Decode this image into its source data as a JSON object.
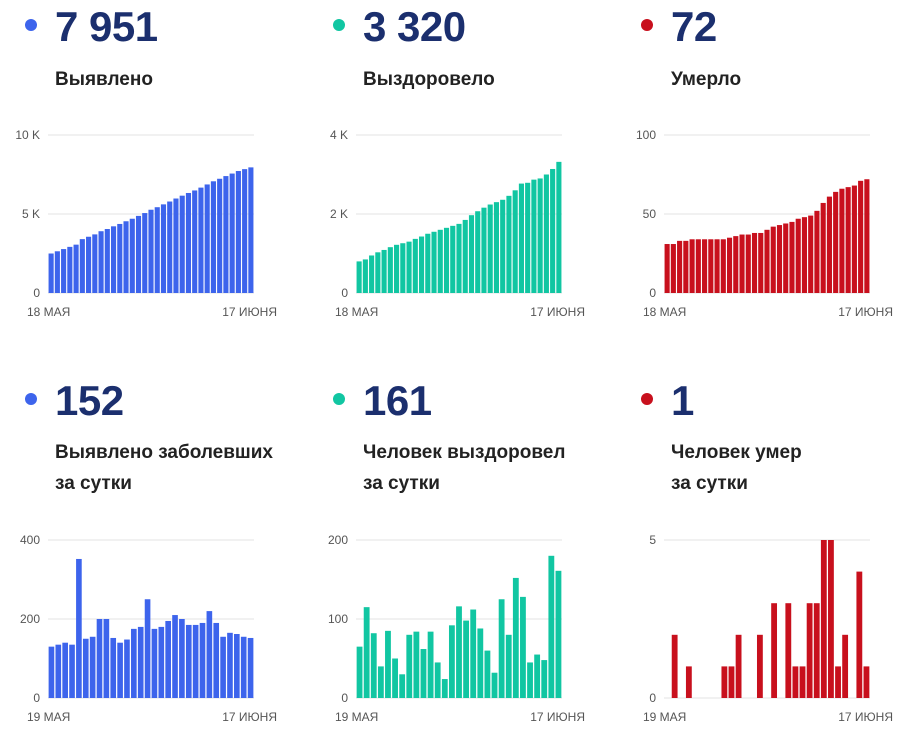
{
  "colors": {
    "blue": "#3d64ec",
    "teal": "#11c6a2",
    "red": "#c8101d",
    "value_text": "#1b2f6e"
  },
  "cards": [
    {
      "value": "7 951",
      "label1": "Выявлено",
      "label2": "",
      "color": "#3d64ec",
      "chart_data": {
        "type": "bar",
        "title": "",
        "xlabel": "",
        "ylabel": "",
        "ylim": [
          0,
          10000
        ],
        "yticks": [
          0,
          5000,
          10000
        ],
        "ytick_labels": [
          "0",
          "5 K",
          "10 K"
        ],
        "x_labels": [
          "18 МАЯ",
          "17 ИЮНЯ"
        ],
        "grid": true,
        "series": [
          {
            "values": [
              2500,
              2640,
              2780,
              2920,
              3060,
              3410,
              3560,
              3710,
              3910,
              4050,
              4220,
              4370,
              4540,
              4700,
              4880,
              5060,
              5270,
              5430,
              5610,
              5790,
              5980,
              6160,
              6330,
              6490,
              6670,
              6870,
              7070,
              7230,
              7400,
              7560,
              7720,
              7840,
              7951
            ]
          }
        ]
      }
    },
    {
      "value": "3 320",
      "label1": "Выздоровело",
      "label2": "",
      "color": "#11c6a2",
      "chart_data": {
        "type": "bar",
        "title": "",
        "xlabel": "",
        "ylabel": "",
        "ylim": [
          0,
          4000
        ],
        "yticks": [
          0,
          2000,
          4000
        ],
        "ytick_labels": [
          "0",
          "2 K",
          "4 K"
        ],
        "x_labels": [
          "18 МАЯ",
          "17 ИЮНЯ"
        ],
        "grid": true,
        "series": [
          {
            "values": [
              800,
              850,
              950,
              1030,
              1090,
              1160,
              1220,
              1260,
              1300,
              1370,
              1430,
              1500,
              1550,
              1600,
              1650,
              1700,
              1750,
              1850,
              1970,
              2070,
              2160,
              2240,
              2300,
              2360,
              2460,
              2600,
              2770,
              2790,
              2870,
              2900,
              3000,
              3140,
              3320
            ]
          }
        ]
      }
    },
    {
      "value": "72",
      "label1": "Умерло",
      "label2": "",
      "color": "#c8101d",
      "chart_data": {
        "type": "bar",
        "title": "",
        "xlabel": "",
        "ylabel": "",
        "ylim": [
          0,
          100
        ],
        "yticks": [
          0,
          50,
          100
        ],
        "ytick_labels": [
          "0",
          "50",
          "100"
        ],
        "x_labels": [
          "18 МАЯ",
          "17 ИЮНЯ"
        ],
        "grid": true,
        "series": [
          {
            "values": [
              31,
              31,
              33,
              33,
              34,
              34,
              34,
              34,
              34,
              34,
              35,
              36,
              37,
              37,
              38,
              38,
              40,
              42,
              43,
              44,
              45,
              47,
              48,
              49,
              52,
              57,
              61,
              64,
              66,
              67,
              68,
              71,
              72
            ]
          }
        ]
      }
    },
    {
      "value": "152",
      "label1": "Выявлено заболевших",
      "label2": "за сутки",
      "color": "#3d64ec",
      "chart_data": {
        "type": "bar",
        "title": "",
        "xlabel": "",
        "ylabel": "",
        "ylim": [
          0,
          400
        ],
        "yticks": [
          0,
          200,
          400
        ],
        "ytick_labels": [
          "0",
          "200",
          "400"
        ],
        "x_labels": [
          "19 МАЯ",
          "17 ИЮНЯ"
        ],
        "grid": true,
        "series": [
          {
            "values": [
              130,
              135,
              140,
              135,
              352,
              150,
              155,
              200,
              200,
              152,
              140,
              148,
              175,
              180,
              250,
              175,
              180,
              195,
              210,
              200,
              185,
              185,
              190,
              220,
              190,
              155,
              165,
              162,
              155,
              152
            ]
          }
        ]
      }
    },
    {
      "value": "161",
      "label1": "Человек выздоровел",
      "label2": "за сутки",
      "color": "#11c6a2",
      "chart_data": {
        "type": "bar",
        "title": "",
        "xlabel": "",
        "ylabel": "",
        "ylim": [
          0,
          200
        ],
        "yticks": [
          0,
          100,
          200
        ],
        "ytick_labels": [
          "0",
          "100",
          "200"
        ],
        "x_labels": [
          "19 МАЯ",
          "17 ИЮНЯ"
        ],
        "grid": true,
        "series": [
          {
            "values": [
              65,
              115,
              82,
              40,
              85,
              50,
              30,
              80,
              84,
              62,
              84,
              45,
              24,
              92,
              116,
              98,
              112,
              88,
              60,
              32,
              125,
              80,
              152,
              128,
              45,
              55,
              48,
              180,
              161
            ]
          }
        ]
      }
    },
    {
      "value": "1",
      "label1": "Человек умер",
      "label2": "за сутки",
      "color": "#c8101d",
      "chart_data": {
        "type": "bar",
        "title": "",
        "xlabel": "",
        "ylabel": "",
        "ylim": [
          0,
          5
        ],
        "yticks": [
          0,
          5
        ],
        "ytick_labels": [
          "0",
          "5"
        ],
        "x_labels": [
          "19 МАЯ",
          "17 ИЮНЯ"
        ],
        "grid": true,
        "series": [
          {
            "values": [
              0,
              2,
              0,
              1,
              0,
              0,
              0,
              0,
              1,
              1,
              2,
              0,
              0,
              2,
              0,
              3,
              0,
              3,
              1,
              1,
              3,
              3,
              5,
              5,
              1,
              2,
              0,
              4,
              1
            ]
          }
        ]
      }
    }
  ]
}
